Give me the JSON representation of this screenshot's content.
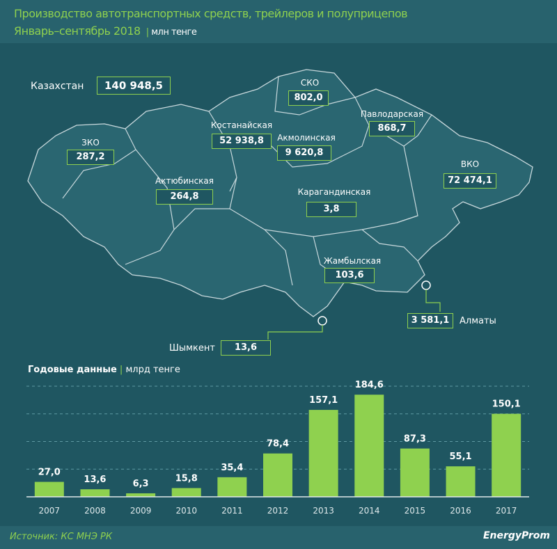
{
  "header": {
    "title": "Производство автотранспортных средств, трейлеров и полуприцепов",
    "subtitle": "Январь–сентябрь 2018",
    "unit": "млн тенге"
  },
  "map": {
    "country": {
      "label": "Казахстан",
      "value": "140 948,5"
    },
    "regions": [
      {
        "name": "ЗКО",
        "value": "287,2"
      },
      {
        "name": "Актюбинская",
        "value": "264,8"
      },
      {
        "name": "Костанайская",
        "value": "52 938,8"
      },
      {
        "name": "СКО",
        "value": "802,0"
      },
      {
        "name": "Акмолинская",
        "value": "9 620,8"
      },
      {
        "name": "Павлодарская",
        "value": "868,7"
      },
      {
        "name": "ВКО",
        "value": "72 474,1"
      },
      {
        "name": "Карагандинская",
        "value": "3,8"
      },
      {
        "name": "Жамбылская",
        "value": "103,6"
      }
    ],
    "cities": [
      {
        "name": "Алматы",
        "value": "3 581,1"
      },
      {
        "name": "Шымкент",
        "value": "13,6"
      }
    ]
  },
  "chart_title": {
    "label": "Годовые данные",
    "unit": "млрд тенге"
  },
  "chart_data": {
    "type": "bar",
    "title": "Годовые данные",
    "ylabel": "млрд тенге",
    "categories": [
      "2007",
      "2008",
      "2009",
      "2010",
      "2011",
      "2012",
      "2013",
      "2014",
      "2015",
      "2016",
      "2017"
    ],
    "values": [
      27.0,
      13.6,
      6.3,
      15.8,
      35.4,
      78.4,
      157.1,
      184.6,
      87.3,
      55.1,
      150.1
    ],
    "labels": [
      "27,0",
      "13,6",
      "6,3",
      "15,8",
      "35,4",
      "78,4",
      "157,1",
      "184,6",
      "87,3",
      "55,1",
      "150,1"
    ],
    "ylim": [
      0,
      200
    ],
    "grid": true,
    "bar_color": "#8fd14f"
  },
  "footer": {
    "source": "Источник: КС МНЭ РК",
    "logo": "EnergyProm"
  }
}
